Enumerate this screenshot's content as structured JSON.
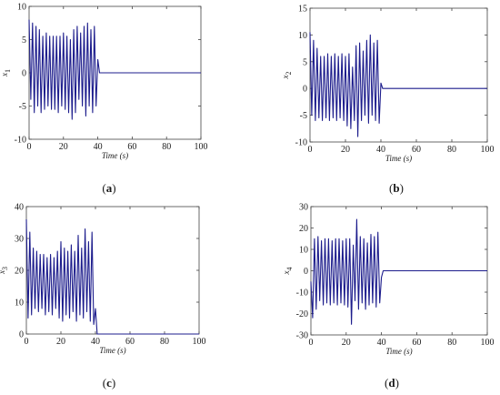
{
  "panel_labels": [
    "(a)",
    "(b)",
    "(c)",
    "(d)"
  ],
  "colors": {
    "series": "#1c1c8c",
    "axis": "#444444",
    "text": "#1a1a1a"
  },
  "chart_data": [
    {
      "panel": "(a)",
      "type": "line",
      "xlabel": "Time (s)",
      "ylabel": "x1",
      "xlim": [
        0,
        100
      ],
      "ylim": [
        -10,
        10
      ],
      "xticks": [
        0,
        20,
        40,
        60,
        80,
        100
      ],
      "yticks": [
        -10,
        -5,
        0,
        5,
        10
      ],
      "grid": false,
      "series": [
        {
          "x": [
            0,
            1,
            2,
            3,
            4,
            5,
            6,
            7,
            8,
            9,
            10,
            11,
            12,
            13,
            14,
            15,
            16,
            17,
            18,
            19,
            20,
            21,
            22,
            23,
            24,
            25,
            26,
            27,
            28,
            29,
            30,
            31,
            32,
            33,
            34,
            35,
            36,
            37,
            38,
            39,
            40,
            41,
            42,
            100
          ],
          "y": [
            8,
            -4,
            7.5,
            -6,
            7,
            -5,
            6.5,
            -6,
            5.5,
            -5.5,
            6,
            -5,
            5.5,
            -5.5,
            5.5,
            -5.5,
            5.5,
            -6,
            5.5,
            -5,
            6,
            -5.5,
            5.5,
            -6,
            5,
            -7,
            6.5,
            -6,
            7,
            -4,
            6,
            -5,
            7,
            -6.5,
            7.5,
            -5,
            6.5,
            -6,
            7,
            -5,
            2,
            0,
            0,
            0
          ]
        }
      ]
    },
    {
      "panel": "(b)",
      "type": "line",
      "xlabel": "Time (s)",
      "ylabel": "x2",
      "xlim": [
        0,
        100
      ],
      "ylim": [
        -10,
        15
      ],
      "xticks": [
        0,
        20,
        40,
        60,
        80,
        100
      ],
      "yticks": [
        -10,
        -5,
        0,
        5,
        10,
        15
      ],
      "grid": false,
      "series": [
        {
          "x": [
            0,
            1,
            2,
            3,
            4,
            5,
            6,
            7,
            8,
            9,
            10,
            11,
            12,
            13,
            14,
            15,
            16,
            17,
            18,
            19,
            20,
            21,
            22,
            23,
            24,
            25,
            26,
            27,
            28,
            29,
            30,
            31,
            32,
            33,
            34,
            35,
            36,
            37,
            38,
            39,
            40,
            41,
            42,
            100
          ],
          "y": [
            10.5,
            -5,
            9,
            -6,
            7.5,
            -5.5,
            6,
            -6,
            6,
            -5.5,
            6.5,
            -6,
            6,
            -5.5,
            6.5,
            -6,
            6,
            -5.5,
            6.5,
            -6,
            6,
            -7,
            6.5,
            -7.5,
            4,
            -6,
            8,
            -9,
            8.5,
            -6,
            7,
            -5,
            9,
            -6.5,
            10,
            -5,
            8.5,
            -6,
            9,
            -6.5,
            1,
            0,
            0,
            0
          ]
        }
      ]
    },
    {
      "panel": "(c)",
      "type": "line",
      "xlabel": "Time (s)",
      "ylabel": "x3",
      "xlim": [
        0,
        100
      ],
      "ylim": [
        0,
        40
      ],
      "xticks": [
        0,
        20,
        40,
        60,
        80,
        100
      ],
      "yticks": [
        0,
        10,
        20,
        30,
        40
      ],
      "grid": false,
      "series": [
        {
          "x": [
            0,
            1,
            2,
            3,
            4,
            5,
            6,
            7,
            8,
            9,
            10,
            11,
            12,
            13,
            14,
            15,
            16,
            17,
            18,
            19,
            20,
            21,
            22,
            23,
            24,
            25,
            26,
            27,
            28,
            29,
            30,
            31,
            32,
            33,
            34,
            35,
            36,
            37,
            38,
            39,
            40,
            41,
            42,
            100
          ],
          "y": [
            36,
            5,
            32,
            6,
            27,
            8,
            26,
            7,
            25,
            8,
            25,
            6,
            24,
            7,
            25,
            6,
            24,
            8,
            26,
            5,
            29,
            4,
            27,
            6,
            26,
            5,
            28,
            7,
            26,
            4,
            31,
            6,
            27,
            5,
            33,
            7,
            29,
            4,
            32,
            3,
            8,
            0,
            0,
            0
          ]
        }
      ]
    },
    {
      "panel": "(d)",
      "type": "line",
      "xlabel": "Time (s)",
      "ylabel": "x4",
      "xlim": [
        0,
        100
      ],
      "ylim": [
        -30,
        30
      ],
      "xticks": [
        0,
        20,
        40,
        60,
        80,
        100
      ],
      "yticks": [
        -30,
        -20,
        -10,
        0,
        10,
        20,
        30
      ],
      "grid": false,
      "series": [
        {
          "x": [
            0,
            1,
            2,
            3,
            4,
            5,
            6,
            7,
            8,
            9,
            10,
            11,
            12,
            13,
            14,
            15,
            16,
            17,
            18,
            19,
            20,
            21,
            22,
            23,
            24,
            25,
            26,
            27,
            28,
            29,
            30,
            31,
            32,
            33,
            34,
            35,
            36,
            37,
            38,
            39,
            40,
            41,
            42,
            100
          ],
          "y": [
            -5,
            -22,
            15,
            -18,
            16,
            -14,
            14,
            -16,
            15,
            -15,
            15,
            -16,
            14,
            -15,
            15,
            -16,
            15,
            -15,
            14,
            -16,
            15,
            -17,
            15,
            -25,
            12,
            -14,
            24,
            -18,
            16,
            -15,
            15,
            -18,
            13,
            -16,
            17,
            -15,
            16,
            -17,
            18,
            -15,
            -3,
            0,
            0,
            0
          ]
        }
      ]
    }
  ]
}
